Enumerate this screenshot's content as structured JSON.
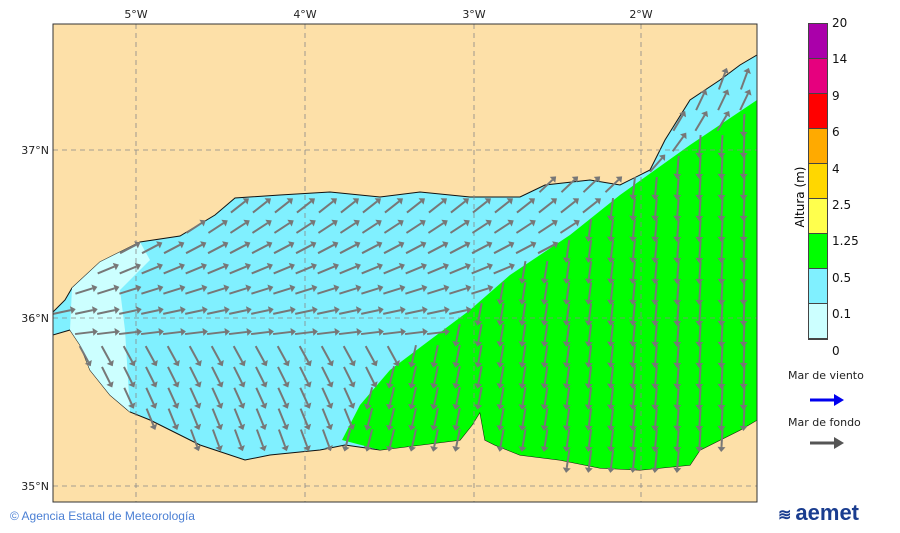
{
  "map": {
    "lon_labels": [
      "5°W",
      "4°W",
      "3°W",
      "2°W"
    ],
    "lat_labels": [
      "37°N",
      "36°N",
      "35°N"
    ],
    "colors": {
      "land": "#fde0a8",
      "sea_low": "#ccffff",
      "sea_mid": "#80f0ff",
      "sea_green": "#00ff00",
      "swell_arrow": "#777777",
      "wind_arrow": "#0000ee"
    }
  },
  "colorbar": {
    "title": "Altura (m)",
    "ticks": [
      "20",
      "14",
      "9",
      "6",
      "4",
      "2.5",
      "1.25",
      "0.5",
      "0.1",
      "0"
    ],
    "colors": [
      "#aa00aa",
      "#e6007e",
      "#ff0000",
      "#ffaa00",
      "#ffd700",
      "#ffff4d",
      "#00ff00",
      "#80f0ff",
      "#ccffff"
    ]
  },
  "legend": {
    "wind_sea": "Mar de viento",
    "swell": "Mar de fondo"
  },
  "footer": {
    "copyright": "© Agencia Estatal de Meteorología",
    "logo": "aemet"
  }
}
